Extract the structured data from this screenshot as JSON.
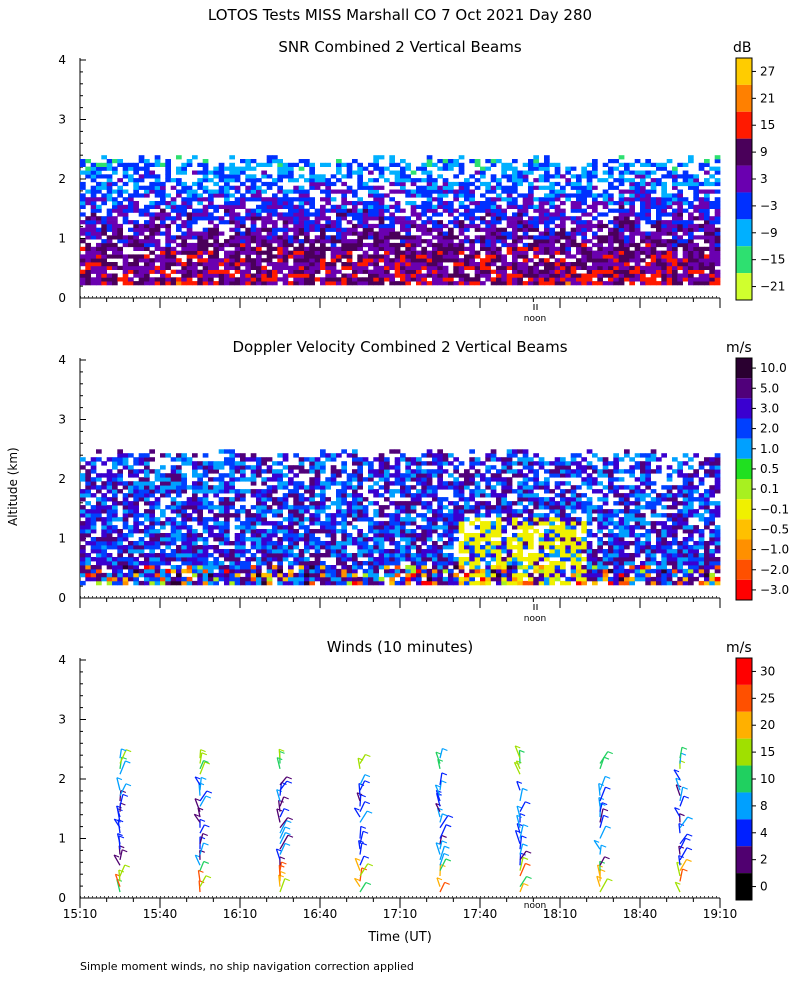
{
  "title": "LOTOS Tests MISS Marshall CO   7 Oct 2021 Day 280",
  "y_axis_label": "Altitude (km)",
  "x_axis_label": "Time (UT)",
  "footnote": "Simple moment winds, no ship navigation correction applied",
  "noon_label": "noon",
  "chart_data": [
    {
      "type": "heatmap",
      "title": "SNR Combined 2 Vertical Beams",
      "units": "dB",
      "colorbar_ticks": [
        "27",
        "21",
        "15",
        "9",
        "3",
        "−3",
        "−9",
        "−15",
        "−21"
      ],
      "colorbar_colors": [
        "#ffcc00",
        "#ff8000",
        "#ff1a00",
        "#4a005a",
        "#6a00b0",
        "#0030ff",
        "#00b0ff",
        "#2ee070",
        "#d0ff2e"
      ],
      "ylim": [
        0,
        4
      ],
      "yticks": [
        "0",
        "1",
        "2",
        "3",
        "4"
      ],
      "xlim": [
        "15:10",
        "19:10"
      ],
      "data_top_km_approx": 2.4,
      "data_bottom_km_approx": 0.2
    },
    {
      "type": "heatmap",
      "title": "Doppler Velocity Combined 2 Vertical Beams",
      "units": "m/s",
      "colorbar_ticks": [
        "10.0",
        "5.0",
        "3.0",
        "2.0",
        "1.0",
        "0.5",
        "0.1",
        "−0.1",
        "−0.5",
        "−1.0",
        "−2.0",
        "−3.0"
      ],
      "colorbar_colors": [
        "#2a0030",
        "#50007a",
        "#3a00d0",
        "#0040ff",
        "#00a0ff",
        "#20e020",
        "#a8f020",
        "#f0f000",
        "#ffc000",
        "#ff9000",
        "#ff5000",
        "#ff0000"
      ],
      "ylim": [
        0,
        4
      ],
      "yticks": [
        "0",
        "1",
        "2",
        "3",
        "4"
      ],
      "xlim": [
        "15:10",
        "19:10"
      ],
      "data_top_km_approx": 2.5,
      "data_bottom_km_approx": 0.2
    },
    {
      "type": "scatter",
      "title": "Winds (10 minutes)",
      "units": "m/s",
      "colorbar_ticks": [
        "30",
        "25",
        "20",
        "15",
        "10",
        "8",
        "4",
        "2",
        "0"
      ],
      "colorbar_colors": [
        "#ff0000",
        "#ff5000",
        "#ffb000",
        "#a0e000",
        "#20d060",
        "#00a0ff",
        "#0020ff",
        "#500070",
        "#000000"
      ],
      "ylim": [
        0,
        4
      ],
      "yticks": [
        "0",
        "1",
        "2",
        "3",
        "4"
      ],
      "xticks": [
        "15:10",
        "15:40",
        "16:10",
        "16:40",
        "17:10",
        "17:40",
        "18:10",
        "18:40",
        "19:10"
      ],
      "profile_times": [
        "15:25",
        "15:55",
        "16:25",
        "16:55",
        "17:25",
        "17:55",
        "18:25",
        "18:55"
      ]
    }
  ]
}
